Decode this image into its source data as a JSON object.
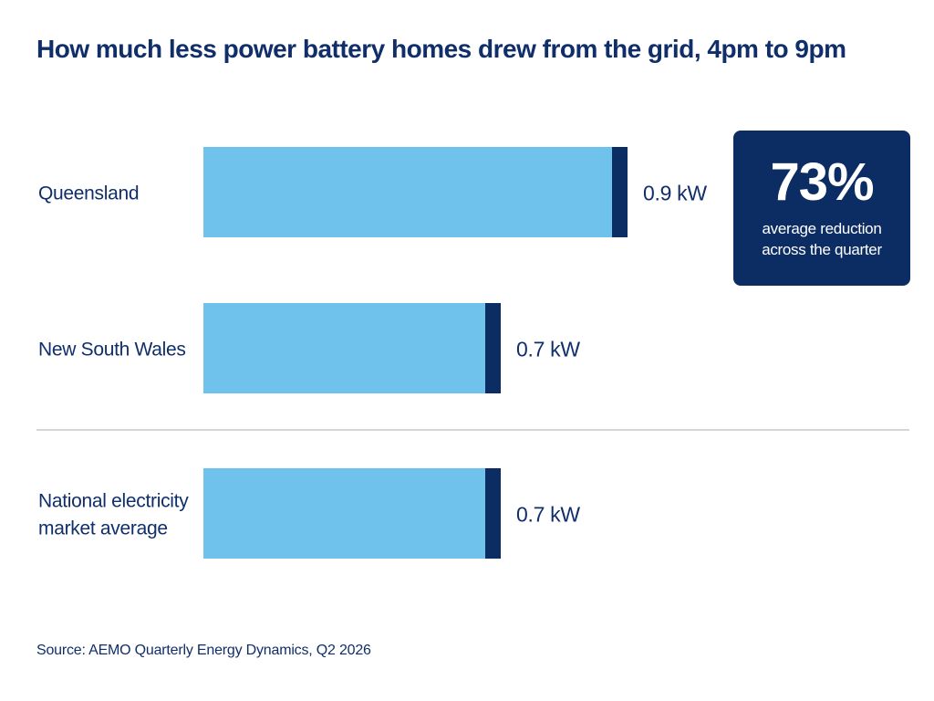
{
  "title": "How much less power battery homes drew from the grid, 4pm to 9pm",
  "callout": {
    "value": "73%",
    "text_line1": "average reduction",
    "text_line2": "across the quarter"
  },
  "source": "Source: AEMO Quarterly Energy Dynamics, Q2 2026",
  "colors": {
    "bar": "#6ec2ec",
    "bar_cap": "#0c2d63",
    "text": "#102f6a",
    "callout_bg": "#0c2d63",
    "divider": "#c7c9cc"
  },
  "chart_data": {
    "type": "bar",
    "orientation": "horizontal",
    "categories": [
      [
        "Queensland"
      ],
      [
        "New South Wales"
      ],
      [
        "National electricity",
        "market average"
      ]
    ],
    "values": [
      0.9,
      0.7,
      0.7
    ],
    "value_labels": [
      "0.9 kW",
      "0.7 kW",
      "0.7 kW"
    ],
    "unit": "kW",
    "divider_after_index": 1
  }
}
